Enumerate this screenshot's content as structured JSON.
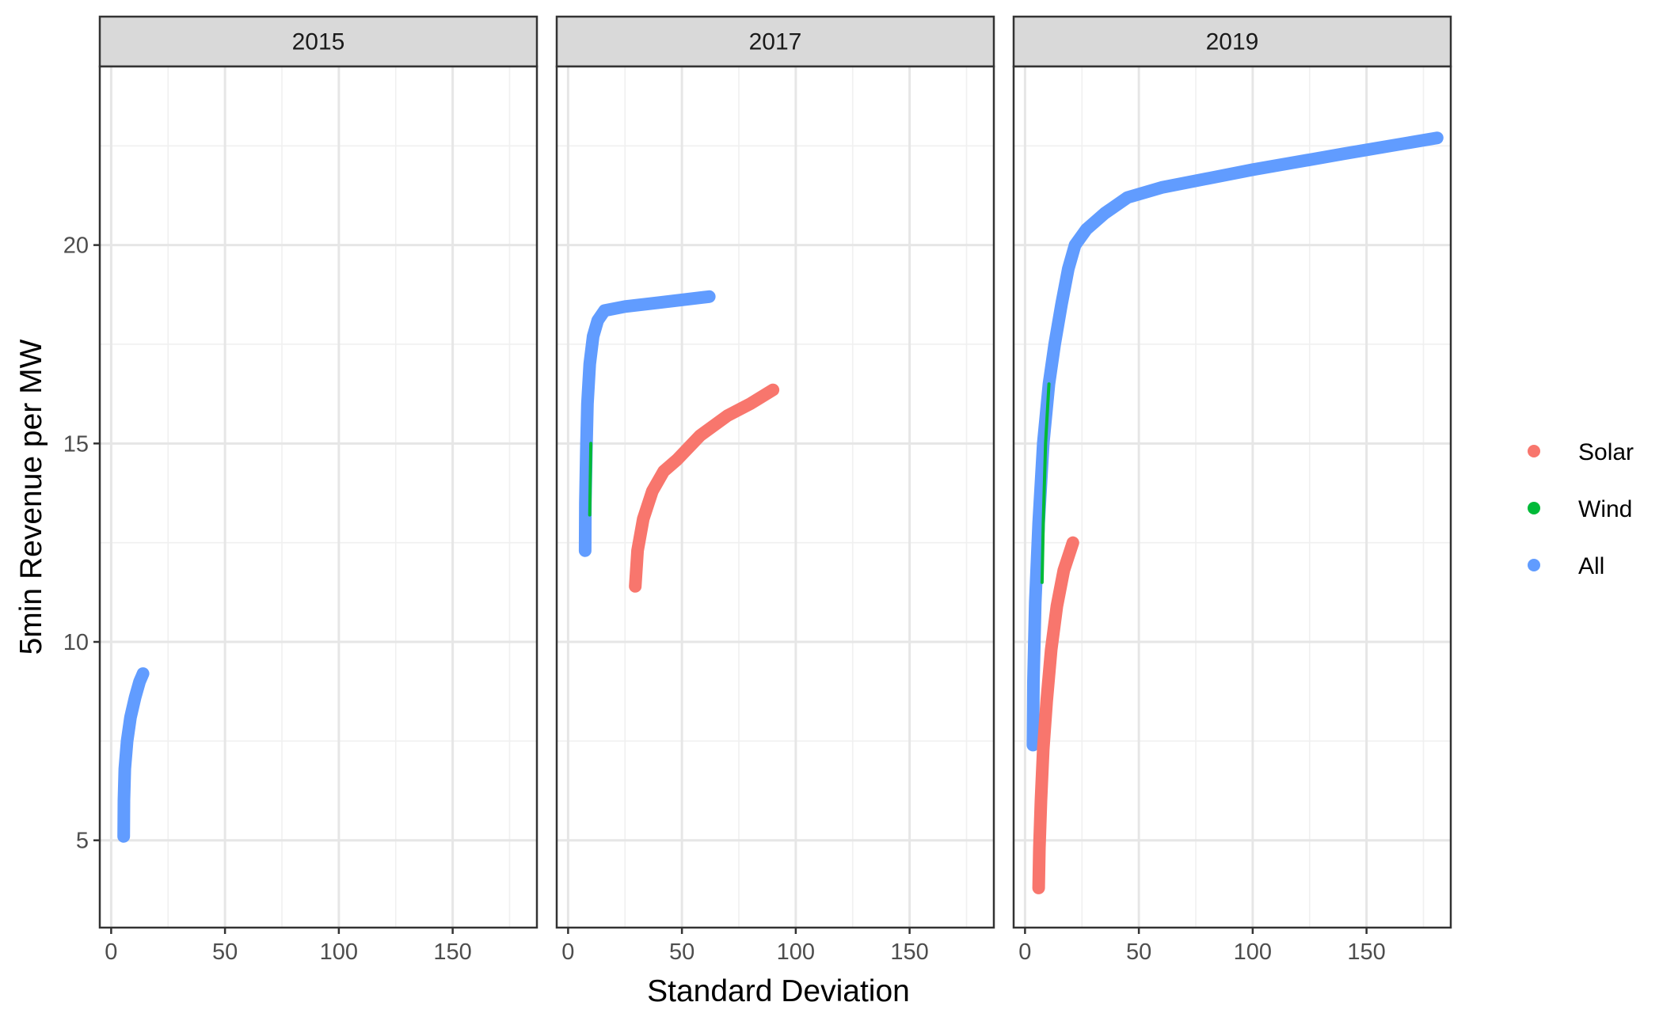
{
  "chart_data": {
    "type": "line",
    "xlabel": "Standard Deviation",
    "ylabel": "5min Revenue per MW",
    "xlim": [
      -5,
      187
    ],
    "ylim": [
      2.8,
      24.5
    ],
    "x_ticks": [
      0,
      50,
      100,
      150
    ],
    "y_ticks": [
      5,
      10,
      15,
      20
    ],
    "grid": true,
    "legend_position": "right",
    "legend": [
      {
        "name": "Solar",
        "color": "#F8766D"
      },
      {
        "name": "Wind",
        "color": "#00BA38"
      },
      {
        "name": "All",
        "color": "#619CFF"
      }
    ],
    "panels": [
      {
        "label": "2015",
        "series": [
          {
            "name": "All",
            "color": "#619CFF",
            "points": [
              [
                5.5,
                5.1
              ],
              [
                5.6,
                6.0
              ],
              [
                6.0,
                6.8
              ],
              [
                7.0,
                7.5
              ],
              [
                8.5,
                8.1
              ],
              [
                10.5,
                8.6
              ],
              [
                12.5,
                9.0
              ],
              [
                14,
                9.2
              ]
            ]
          }
        ]
      },
      {
        "label": "2017",
        "series": [
          {
            "name": "Wind",
            "color": "#00BA38",
            "points": [
              [
                9.5,
                13.2
              ],
              [
                9.7,
                14.0
              ],
              [
                10.0,
                15.0
              ]
            ]
          },
          {
            "name": "All",
            "color": "#619CFF",
            "points": [
              [
                7.5,
                12.3
              ],
              [
                7.6,
                13.5
              ],
              [
                8.0,
                14.8
              ],
              [
                8.5,
                16.0
              ],
              [
                9.5,
                17.0
              ],
              [
                11,
                17.7
              ],
              [
                13,
                18.1
              ],
              [
                16,
                18.35
              ],
              [
                25,
                18.45
              ],
              [
                40,
                18.55
              ],
              [
                62,
                18.7
              ]
            ]
          },
          {
            "name": "Solar",
            "color": "#F8766D",
            "points": [
              [
                29.5,
                11.4
              ],
              [
                30.5,
                12.3
              ],
              [
                33,
                13.1
              ],
              [
                37,
                13.8
              ],
              [
                42,
                14.3
              ],
              [
                48,
                14.6
              ],
              [
                58,
                15.2
              ],
              [
                70,
                15.7
              ],
              [
                80,
                16.0
              ],
              [
                90,
                16.35
              ]
            ]
          }
        ]
      },
      {
        "label": "2019",
        "series": [
          {
            "name": "Wind",
            "color": "#00BA38",
            "points": [
              [
                7.5,
                11.5
              ],
              [
                8.0,
                13.0
              ],
              [
                9.0,
                15.0
              ],
              [
                10.5,
                16.5
              ]
            ]
          },
          {
            "name": "All",
            "color": "#619CFF",
            "points": [
              [
                3.5,
                7.4
              ],
              [
                3.7,
                9.0
              ],
              [
                4.5,
                11.0
              ],
              [
                6.0,
                13.0
              ],
              [
                8.0,
                15.0
              ],
              [
                10.5,
                16.5
              ],
              [
                13,
                17.5
              ],
              [
                16,
                18.5
              ],
              [
                19,
                19.4
              ],
              [
                22,
                20.0
              ],
              [
                27,
                20.4
              ],
              [
                35,
                20.8
              ],
              [
                45,
                21.2
              ],
              [
                60,
                21.45
              ],
              [
                100,
                21.9
              ],
              [
                140,
                22.3
              ],
              [
                181,
                22.7
              ]
            ]
          },
          {
            "name": "Solar",
            "color": "#F8766D",
            "points": [
              [
                6.0,
                3.8
              ],
              [
                6.3,
                4.8
              ],
              [
                7.0,
                6.0
              ],
              [
                8.0,
                7.3
              ],
              [
                9.5,
                8.5
              ],
              [
                11.5,
                9.8
              ],
              [
                14,
                10.9
              ],
              [
                17,
                11.8
              ],
              [
                21,
                12.5
              ]
            ]
          }
        ]
      }
    ]
  }
}
